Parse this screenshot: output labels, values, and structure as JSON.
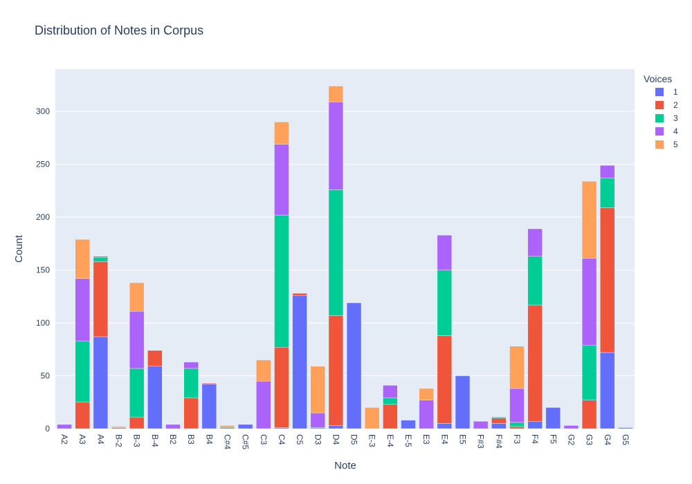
{
  "chart_data": {
    "type": "bar",
    "barmode": "stack",
    "title": "Distribution of Notes in Corpus",
    "xlabel": "Note",
    "ylabel": "Count",
    "ylim": [
      0,
      340
    ],
    "yticks": [
      0,
      50,
      100,
      150,
      200,
      250,
      300
    ],
    "grid": true,
    "legend_title": "Voices",
    "legend_position": "top-right",
    "categories": [
      "A2",
      "A3",
      "A4",
      "B-2",
      "B-3",
      "B-4",
      "B2",
      "B3",
      "B4",
      "C#4",
      "C#5",
      "C3",
      "C4",
      "C5",
      "D3",
      "D4",
      "D5",
      "E-3",
      "E-4",
      "E-5",
      "E3",
      "E4",
      "E5",
      "F#3",
      "F#4",
      "F3",
      "F4",
      "F5",
      "G2",
      "G3",
      "G4",
      "G5"
    ],
    "series": [
      {
        "name": "1",
        "color": "#636efa",
        "values": [
          0,
          0,
          87,
          0,
          0,
          59,
          0,
          0,
          42,
          0,
          4,
          0,
          1,
          126,
          0,
          3,
          119,
          0,
          0,
          8,
          0,
          5,
          50,
          0,
          5,
          0,
          7,
          20,
          0,
          0,
          72,
          1
        ]
      },
      {
        "name": "2",
        "color": "#ef553b",
        "values": [
          0,
          25,
          71,
          1,
          11,
          15,
          0,
          29,
          1,
          1,
          0,
          0,
          76,
          2,
          0,
          104,
          0,
          0,
          23,
          0,
          0,
          83,
          0,
          0,
          5,
          2,
          110,
          0,
          0,
          27,
          137,
          0
        ]
      },
      {
        "name": "3",
        "color": "#00cc96",
        "values": [
          0,
          58,
          4,
          0,
          46,
          0,
          0,
          28,
          0,
          1,
          0,
          0,
          125,
          0,
          1,
          119,
          0,
          0,
          6,
          0,
          0,
          62,
          0,
          0,
          1,
          4,
          46,
          0,
          0,
          52,
          28,
          0
        ]
      },
      {
        "name": "4",
        "color": "#ab63fa",
        "values": [
          4,
          59,
          1,
          0,
          54,
          0,
          4,
          6,
          0,
          0,
          0,
          45,
          67,
          0,
          14,
          83,
          0,
          0,
          12,
          0,
          27,
          33,
          0,
          7,
          0,
          32,
          26,
          0,
          3,
          82,
          12,
          0
        ]
      },
      {
        "name": "5",
        "color": "#ffa15a",
        "values": [
          0,
          37,
          0,
          1,
          27,
          0,
          0,
          0,
          0,
          1,
          0,
          20,
          21,
          0,
          44,
          15,
          0,
          20,
          0,
          0,
          11,
          0,
          0,
          0,
          0,
          40,
          0,
          0,
          0,
          73,
          0,
          0
        ]
      }
    ]
  }
}
